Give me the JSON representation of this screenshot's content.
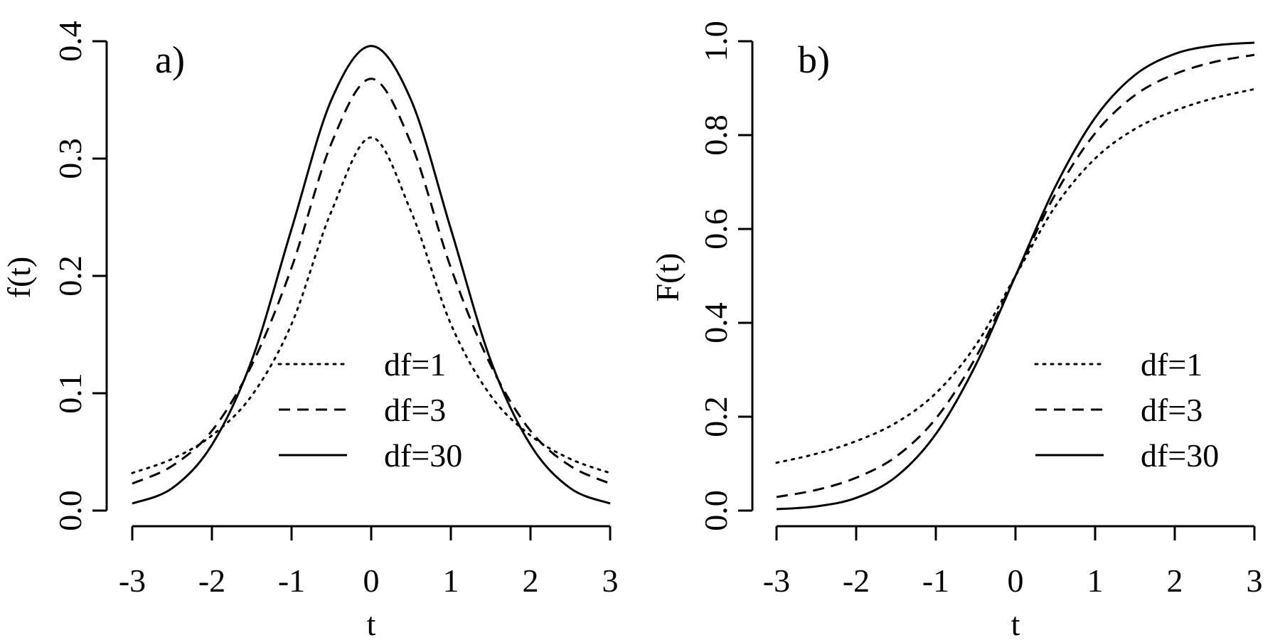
{
  "chart_data": [
    {
      "type": "line",
      "panel_label": "a)",
      "title": "",
      "xlabel": "t",
      "ylabel": "f(t)",
      "xlim": [
        -3,
        3
      ],
      "ylim": [
        0,
        0.4
      ],
      "xticks": [
        "-3",
        "-2",
        "-1",
        "0",
        "1",
        "2",
        "3"
      ],
      "yticks": [
        "0.0",
        "0.1",
        "0.2",
        "0.3",
        "0.4"
      ],
      "x": [
        -3,
        -2.5,
        -2,
        -1.5,
        -1,
        -0.5,
        0,
        0.5,
        1,
        1.5,
        2,
        2.5,
        3
      ],
      "series": [
        {
          "name": "df=1",
          "style": "dotted",
          "values": [
            0.032,
            0.044,
            0.064,
            0.098,
            0.159,
            0.255,
            0.318,
            0.255,
            0.159,
            0.098,
            0.064,
            0.044,
            0.032
          ]
        },
        {
          "name": "df=3",
          "style": "dashed",
          "values": [
            0.023,
            0.038,
            0.068,
            0.124,
            0.207,
            0.313,
            0.368,
            0.313,
            0.207,
            0.124,
            0.068,
            0.038,
            0.023
          ]
        },
        {
          "name": "df=30",
          "style": "solid",
          "values": [
            0.006,
            0.019,
            0.056,
            0.128,
            0.24,
            0.35,
            0.396,
            0.35,
            0.24,
            0.128,
            0.056,
            0.019,
            0.006
          ]
        }
      ],
      "legend": {
        "position": "bottom-right",
        "entries": [
          "df=1",
          "df=3",
          "df=30"
        ]
      }
    },
    {
      "type": "line",
      "panel_label": "b)",
      "title": "",
      "xlabel": "t",
      "ylabel": "F(t)",
      "xlim": [
        -3,
        3
      ],
      "ylim": [
        0,
        1
      ],
      "xticks": [
        "-3",
        "-2",
        "-1",
        "0",
        "1",
        "2",
        "3"
      ],
      "yticks": [
        "0.0",
        "0.2",
        "0.4",
        "0.6",
        "0.8",
        "1.0"
      ],
      "x": [
        -3,
        -2.5,
        -2,
        -1.5,
        -1,
        -0.5,
        0,
        0.5,
        1,
        1.5,
        2,
        2.5,
        3
      ],
      "series": [
        {
          "name": "df=1",
          "style": "dotted",
          "values": [
            0.102,
            0.121,
            0.148,
            0.187,
            0.25,
            0.352,
            0.5,
            0.648,
            0.75,
            0.813,
            0.852,
            0.879,
            0.898
          ]
        },
        {
          "name": "df=3",
          "style": "dashed",
          "values": [
            0.029,
            0.044,
            0.07,
            0.115,
            0.196,
            0.326,
            0.5,
            0.674,
            0.804,
            0.885,
            0.93,
            0.956,
            0.971
          ]
        },
        {
          "name": "df=30",
          "style": "solid",
          "values": [
            0.003,
            0.009,
            0.027,
            0.072,
            0.163,
            0.31,
            0.5,
            0.69,
            0.837,
            0.928,
            0.973,
            0.991,
            0.997
          ]
        }
      ],
      "legend": {
        "position": "bottom-right",
        "entries": [
          "df=1",
          "df=3",
          "df=30"
        ]
      }
    }
  ]
}
